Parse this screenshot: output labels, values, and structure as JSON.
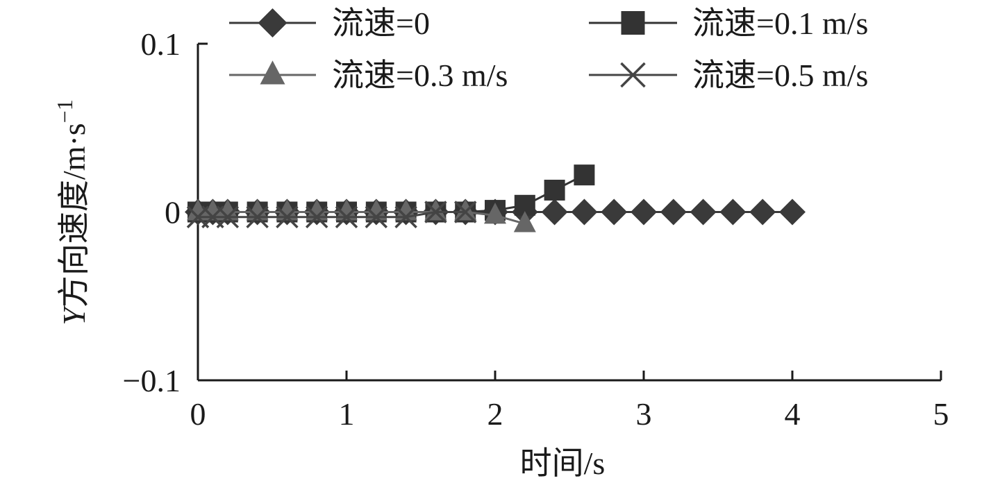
{
  "chart_data": {
    "type": "line",
    "title": "",
    "xlabel": "时间/s",
    "ylabel_italic": "Y",
    "ylabel_main": "方向速度/m·s",
    "ylabel_superscript": "−1",
    "xlim": [
      0,
      5
    ],
    "ylim": [
      -0.1,
      0.1
    ],
    "x_ticks": [
      0,
      1,
      2,
      3,
      4,
      5
    ],
    "x_tick_labels": [
      "0",
      "1",
      "2",
      "3",
      "4",
      "5"
    ],
    "y_ticks": [
      -0.1,
      0,
      0.1
    ],
    "y_tick_labels": [
      "−0.1",
      "0",
      "0.1"
    ],
    "grid": false,
    "legend_position": "top",
    "series": [
      {
        "name": "流速=0",
        "marker": "diamond",
        "color": "#3a3a3a",
        "x": [
          0,
          0.1,
          0.2,
          0.4,
          0.6,
          0.8,
          1.0,
          1.2,
          1.4,
          1.6,
          1.8,
          2.0,
          2.2,
          2.4,
          2.6,
          2.8,
          3.0,
          3.2,
          3.4,
          3.6,
          3.8,
          4.0
        ],
        "y": [
          0,
          0,
          0,
          0,
          0,
          0,
          0,
          0,
          0,
          0,
          0,
          0,
          0,
          0,
          0,
          0,
          0,
          0,
          0,
          0,
          0,
          0
        ]
      },
      {
        "name": "流速=0.1 m/s",
        "marker": "square",
        "color": "#333333",
        "x": [
          0,
          0.1,
          0.2,
          0.4,
          0.6,
          0.8,
          1.0,
          1.2,
          1.4,
          1.6,
          1.8,
          2.0,
          2.2,
          2.4,
          2.6
        ],
        "y": [
          0,
          0,
          0,
          0,
          0,
          0,
          0,
          0,
          0,
          0,
          0,
          0.001,
          0.004,
          0.013,
          0.022
        ]
      },
      {
        "name": "流速=0.3 m/s",
        "marker": "triangle",
        "color": "#666666",
        "x": [
          0,
          0.1,
          0.2,
          0.4,
          0.6,
          0.8,
          1.0,
          1.2,
          1.4,
          1.6,
          1.8,
          2.0,
          2.2
        ],
        "y": [
          0,
          0,
          0,
          0,
          0,
          0,
          0,
          0,
          0,
          0,
          0,
          -0.002,
          -0.007
        ]
      },
      {
        "name": "流速=0.5 m/s",
        "marker": "x",
        "color": "#444444",
        "x": [
          0,
          0.1,
          0.2,
          0.4,
          0.6,
          0.8,
          1.0,
          1.2,
          1.4,
          1.6,
          1.8
        ],
        "y": [
          -0.003,
          -0.003,
          -0.003,
          -0.003,
          -0.003,
          -0.003,
          -0.003,
          -0.003,
          -0.003,
          0,
          0
        ]
      }
    ]
  }
}
